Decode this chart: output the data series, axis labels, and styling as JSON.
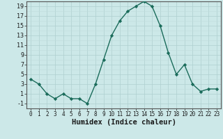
{
  "xlabel": "Humidex (Indice chaleur)",
  "x_values": [
    0,
    1,
    2,
    3,
    4,
    5,
    6,
    7,
    8,
    9,
    10,
    11,
    12,
    13,
    14,
    15,
    16,
    17,
    18,
    19,
    20,
    21,
    22,
    23
  ],
  "y_values": [
    4,
    3,
    1,
    0,
    1,
    0,
    0,
    -1,
    3,
    8,
    13,
    16,
    18,
    19,
    20,
    19,
    15,
    9.5,
    5,
    7,
    3,
    1.5,
    2,
    2
  ],
  "line_color": "#1a6b5a",
  "marker": "D",
  "marker_size": 2.2,
  "bg_color": "#cce8e8",
  "grid_major_color": "#aecfcf",
  "grid_minor_color": "#c0dcdc",
  "ylim": [
    -2,
    20
  ],
  "xlim": [
    -0.5,
    23.5
  ],
  "yticks": [
    -1,
    1,
    3,
    5,
    7,
    9,
    11,
    13,
    15,
    17,
    19
  ],
  "xticks": [
    0,
    1,
    2,
    3,
    4,
    5,
    6,
    7,
    8,
    9,
    10,
    11,
    12,
    13,
    14,
    15,
    16,
    17,
    18,
    19,
    20,
    21,
    22,
    23
  ],
  "xlabel_fontsize": 7.5,
  "tick_fontsize": 6,
  "linewidth": 1.0
}
